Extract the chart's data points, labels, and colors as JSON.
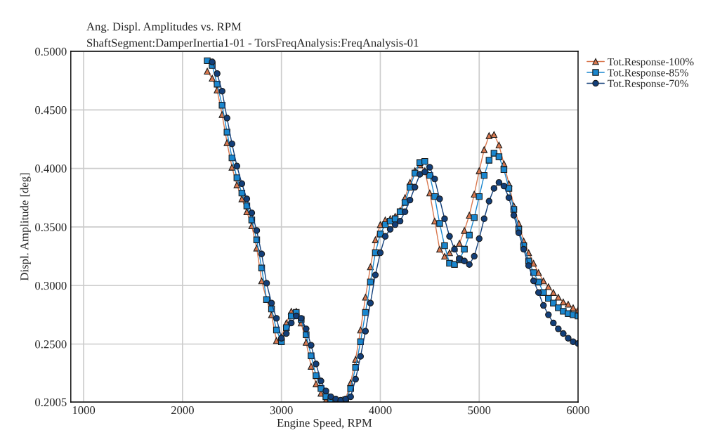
{
  "chart_data": {
    "type": "line",
    "title": "Ang. Displ. Amplitudes vs. RPM",
    "subtitle": "ShaftSegment:DamperInertia1-01 - TorsFreqAnalysis:FreqAnalysis-01",
    "xlabel": "Engine Speed, RPM",
    "ylabel": "Displ. Amplitude [deg]",
    "x": [
      2250,
      2300,
      2350,
      2400,
      2450,
      2500,
      2550,
      2600,
      2650,
      2700,
      2750,
      2800,
      2850,
      2900,
      2950,
      3000,
      3050,
      3100,
      3150,
      3200,
      3250,
      3300,
      3350,
      3400,
      3450,
      3500,
      3550,
      3600,
      3650,
      3700,
      3750,
      3800,
      3850,
      3900,
      3950,
      4000,
      4050,
      4100,
      4150,
      4200,
      4250,
      4300,
      4350,
      4400,
      4450,
      4500,
      4550,
      4600,
      4650,
      4700,
      4750,
      4800,
      4850,
      4900,
      4950,
      5000,
      5050,
      5100,
      5150,
      5200,
      5250,
      5300,
      5350,
      5400,
      5450,
      5500,
      5550,
      5600,
      5650,
      5700,
      5750,
      5800,
      5850,
      5900,
      5950,
      6000
    ],
    "series": [
      {
        "name": "Tot.Response-100%",
        "color": "#d9784f",
        "marker": "triangle",
        "values": [
          0.483,
          0.477,
          0.467,
          0.446,
          0.422,
          0.401,
          0.386,
          0.374,
          0.363,
          0.351,
          0.332,
          0.304,
          0.288,
          0.275,
          0.253,
          0.256,
          0.268,
          0.278,
          0.278,
          0.268,
          0.2515,
          0.231,
          0.216,
          0.208,
          0.202,
          0.201,
          0.201,
          0.2015,
          0.203,
          0.217,
          0.237,
          0.262,
          0.29,
          0.316,
          0.339,
          0.352,
          0.356,
          0.357,
          0.359,
          0.364,
          0.375,
          0.388,
          0.398,
          0.403,
          0.398,
          0.379,
          0.355,
          0.331,
          0.325,
          0.328,
          0.332,
          0.336,
          0.347,
          0.36,
          0.378,
          0.398,
          0.416,
          0.428,
          0.429,
          0.42,
          0.404,
          0.387,
          0.368,
          0.353,
          0.338,
          0.328,
          0.319,
          0.311,
          0.304,
          0.299,
          0.294,
          0.29,
          0.286,
          0.284,
          0.281,
          0.279
        ]
      },
      {
        "name": "Tot.Response-85%",
        "color": "#1a87cf",
        "marker": "square",
        "values": [
          0.492,
          0.488,
          0.472,
          0.454,
          0.431,
          0.409,
          0.392,
          0.379,
          0.368,
          0.356,
          0.339,
          0.315,
          0.288,
          0.28,
          0.262,
          0.252,
          0.264,
          0.274,
          0.277,
          0.271,
          0.258,
          0.24,
          0.223,
          0.212,
          0.205,
          0.2015,
          0.201,
          0.201,
          0.2025,
          0.212,
          0.23,
          0.252,
          0.277,
          0.303,
          0.328,
          0.344,
          0.352,
          0.355,
          0.357,
          0.363,
          0.371,
          0.384,
          0.396,
          0.405,
          0.406,
          0.394,
          0.376,
          0.353,
          0.334,
          0.319,
          0.318,
          0.322,
          0.331,
          0.343,
          0.358,
          0.376,
          0.394,
          0.407,
          0.413,
          0.41,
          0.399,
          0.383,
          0.365,
          0.348,
          0.334,
          0.321,
          0.311,
          0.303,
          0.294,
          0.289,
          0.285,
          0.281,
          0.278,
          0.276,
          0.275,
          0.274
        ]
      },
      {
        "name": "Tot.Response-70%",
        "color": "#123f7a",
        "marker": "circle",
        "values": [
          null,
          0.491,
          0.481,
          0.466,
          0.443,
          0.421,
          0.402,
          0.387,
          0.374,
          0.362,
          0.347,
          0.327,
          0.302,
          0.285,
          0.272,
          0.255,
          0.259,
          0.268,
          0.274,
          0.272,
          0.263,
          0.249,
          0.233,
          0.2185,
          0.21,
          0.205,
          0.203,
          0.202,
          0.203,
          0.205,
          0.22,
          0.2395,
          0.261,
          0.285,
          0.309,
          0.328,
          0.342,
          0.348,
          0.352,
          0.355,
          0.363,
          0.373,
          0.384,
          0.395,
          0.397,
          0.401,
          0.391,
          0.374,
          0.357,
          0.342,
          0.331,
          0.323,
          0.321,
          0.318,
          0.325,
          0.34,
          0.357,
          0.372,
          0.383,
          0.388,
          0.385,
          0.375,
          0.36,
          0.345,
          0.331,
          0.317,
          0.304,
          0.294,
          0.283,
          0.275,
          0.268,
          0.263,
          0.259,
          0.255,
          0.252,
          0.2505
        ]
      }
    ],
    "xlim": [
      870,
      6000
    ],
    "xticks": [
      1000,
      2000,
      3000,
      4000,
      5000,
      6000
    ],
    "ylim": [
      0.2005,
      0.5
    ],
    "yticks": [
      {
        "value": 0.2005,
        "label": "0.2005"
      },
      {
        "value": 0.25,
        "label": "0.2500"
      },
      {
        "value": 0.3,
        "label": "0.3000"
      },
      {
        "value": 0.35,
        "label": "0.3500"
      },
      {
        "value": 0.4,
        "label": "0.4000"
      },
      {
        "value": 0.45,
        "label": "0.4500"
      },
      {
        "value": 0.5,
        "label": "0.5000"
      }
    ],
    "grid": true,
    "legend": "top right",
    "line_style": "solid"
  }
}
